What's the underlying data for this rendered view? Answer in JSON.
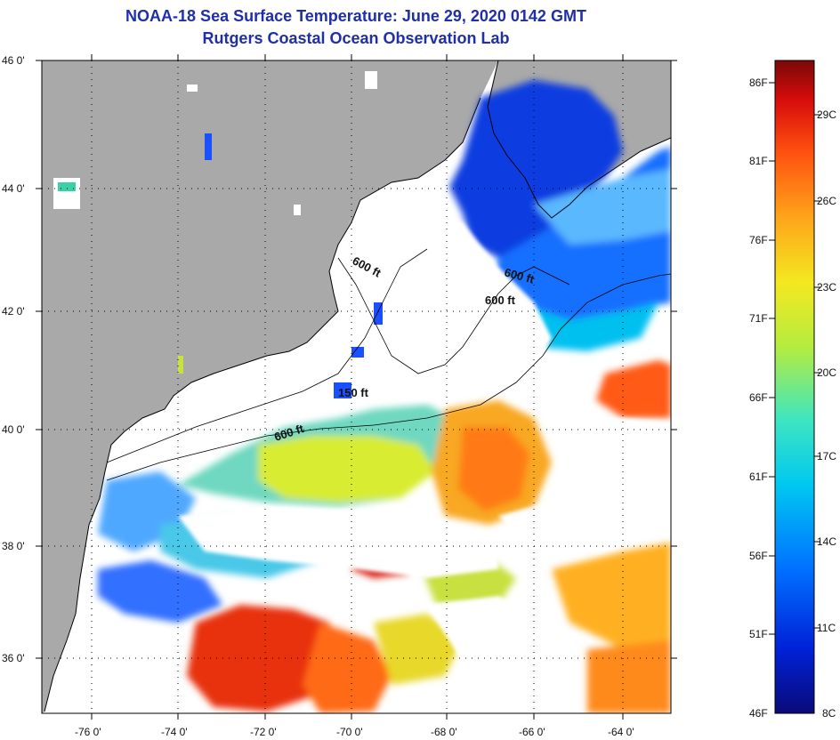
{
  "title": {
    "line1": "NOAA-18 Sea Surface Temperature:  June 29, 2020 0142 GMT",
    "line2": "Rutgers Coastal Ocean Observation Lab"
  },
  "latitude_labels": [
    "46 0'",
    "44 0'",
    "42 0'",
    "40 0'",
    "38 0'",
    "36 0'"
  ],
  "longitude_labels": [
    "-76 0'",
    "-74 0'",
    "-72 0'",
    "-70 0'",
    "-68 0'",
    "-66 0'",
    "-64 0'"
  ],
  "contour_labels": [
    "600 ft",
    "600 ft",
    "600 ft",
    "150 ft",
    "600 ft"
  ],
  "colorbar": {
    "fahrenheit": [
      "86F",
      "81F",
      "76F",
      "71F",
      "66F",
      "61F",
      "56F",
      "51F",
      "46F"
    ],
    "celsius": [
      "29C",
      "26C",
      "23C",
      "20C",
      "17C",
      "14C",
      "11C",
      "8C"
    ],
    "colors": [
      "#0a0a7a",
      "#0022d8",
      "#0070ff",
      "#00c8f0",
      "#3ee6c0",
      "#b4ec40",
      "#f4e820",
      "#ffa41a",
      "#ff5010",
      "#d60c0c",
      "#7a0808"
    ]
  },
  "colors": {
    "land": "#a9a9a9",
    "cloud": "#ffffff",
    "title": "#1f2fa8"
  }
}
